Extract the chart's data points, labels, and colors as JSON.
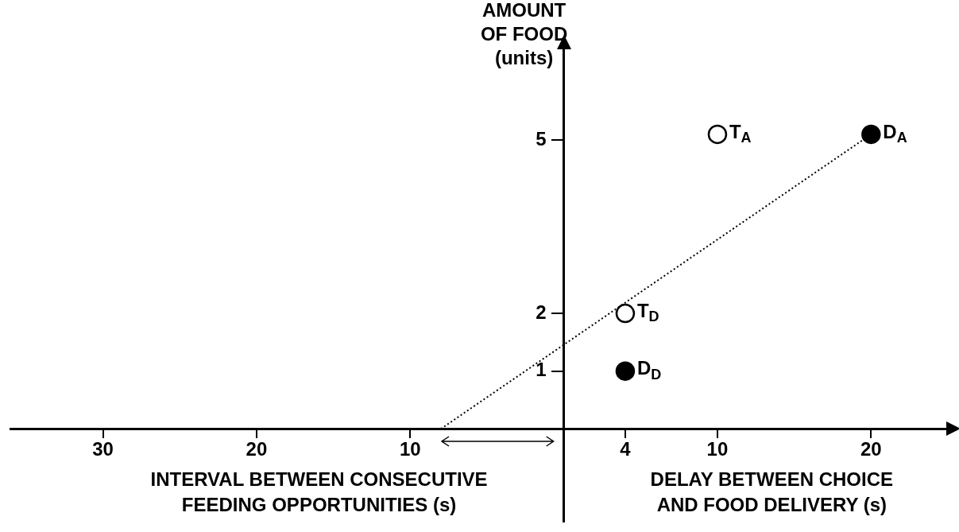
{
  "chart_data": {
    "type": "scatter",
    "ylabel": "AMOUNT\nOF FOOD\n(units)",
    "xlabel": "DELAY BETWEEN CHOICE\nAND FOOD DELIVERY (s)",
    "annotations": [
      "INTERVAL BETWEEN CONSECUTIVE\nFEEDING OPPORTUNITIES (s)"
    ],
    "xlim": [
      -36,
      25
    ],
    "ylim": [
      -1.6,
      6.6
    ],
    "xticks": [
      {
        "value": -30,
        "label": "30"
      },
      {
        "value": -20,
        "label": "20"
      },
      {
        "value": -10,
        "label": "10"
      },
      4,
      10,
      20
    ],
    "yticks": [
      1,
      2,
      5
    ],
    "grid": false,
    "legend": false,
    "marker": "circle",
    "series": [
      {
        "type": "line",
        "color": "#000000",
        "line_style": "dotted",
        "marker": "none",
        "x": [
          -8,
          20
        ],
        "values": [
          0,
          5.1
        ]
      },
      {
        "color": "#ffffff",
        "x": [
          10,
          4
        ],
        "values": [
          5.1,
          2
        ],
        "value_labels": [
          "T$_{A}$",
          "T$_{D}$"
        ]
      },
      {
        "color": "#000000",
        "x": [
          20,
          4
        ],
        "values": [
          5.1,
          1
        ],
        "value_labels": [
          "D$_{A}$",
          "D$_{D}$"
        ]
      }
    ]
  }
}
